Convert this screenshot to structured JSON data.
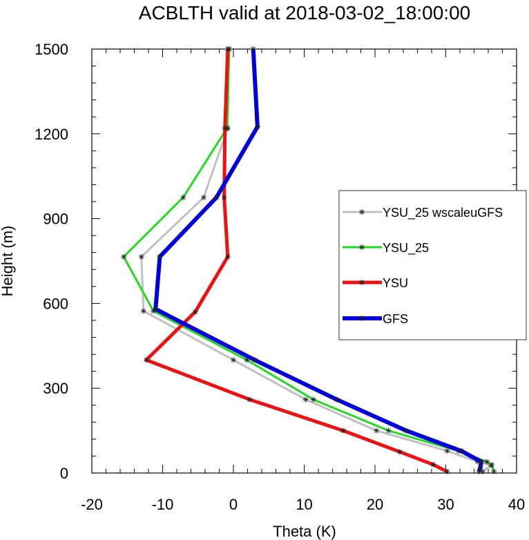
{
  "chart_data": {
    "type": "line",
    "title": "ACBLTH valid at 2018-03-02_18:00:00",
    "xlabel": "Theta (K)",
    "ylabel": "Height (m)",
    "xlim": [
      -20,
      40
    ],
    "ylim": [
      0,
      1500
    ],
    "xticks": [
      "-20",
      "-10",
      "0",
      "10",
      "20",
      "30",
      "40"
    ],
    "yticks": [
      "0",
      "300",
      "600",
      "900",
      "1200",
      "1500"
    ],
    "grid": false,
    "legend_position": "right",
    "series": [
      {
        "name": "YSU_25 wscaleuGFS",
        "color": "#c0c0c0",
        "points": [
          [
            35.2,
            5
          ],
          [
            36.4,
            28
          ],
          [
            34.5,
            40
          ],
          [
            30.2,
            78
          ],
          [
            20.2,
            150
          ],
          [
            10.2,
            260
          ],
          [
            0.0,
            400
          ],
          [
            -12.7,
            573
          ],
          [
            -13.0,
            765
          ],
          [
            -4.2,
            975
          ],
          [
            -0.8,
            1220
          ],
          [
            -0.6,
            1500
          ]
        ]
      },
      {
        "name": "YSU_25",
        "color": "#1fdc1f",
        "points": [
          [
            36.8,
            5
          ],
          [
            36.5,
            28
          ],
          [
            35.8,
            40
          ],
          [
            31.8,
            78
          ],
          [
            21.9,
            150
          ],
          [
            11.3,
            260
          ],
          [
            1.9,
            400
          ],
          [
            -11.3,
            573
          ],
          [
            -15.5,
            765
          ],
          [
            -7.1,
            975
          ],
          [
            -0.9,
            1220
          ],
          [
            -0.6,
            1500
          ]
        ]
      },
      {
        "name": "YSU",
        "color": "#ee1111",
        "points": [
          [
            30.2,
            5
          ],
          [
            28.2,
            30
          ],
          [
            23.5,
            75
          ],
          [
            15.5,
            150
          ],
          [
            2.3,
            260
          ],
          [
            -12.3,
            400
          ],
          [
            -5.4,
            570
          ],
          [
            -0.8,
            765
          ],
          [
            -1.3,
            975
          ],
          [
            -1.2,
            1220
          ],
          [
            -0.8,
            1500
          ]
        ]
      },
      {
        "name": "GFS",
        "color": "#0000dd",
        "points": [
          [
            34.7,
            5
          ],
          [
            34.9,
            20
          ],
          [
            35.0,
            40
          ],
          [
            32.2,
            78
          ],
          [
            24.4,
            150
          ],
          [
            14.6,
            260
          ],
          [
            3.0,
            400
          ],
          [
            -11.0,
            580
          ],
          [
            -10.4,
            765
          ],
          [
            -2.4,
            975
          ],
          [
            3.4,
            1225
          ],
          [
            2.8,
            1500
          ]
        ]
      }
    ]
  }
}
